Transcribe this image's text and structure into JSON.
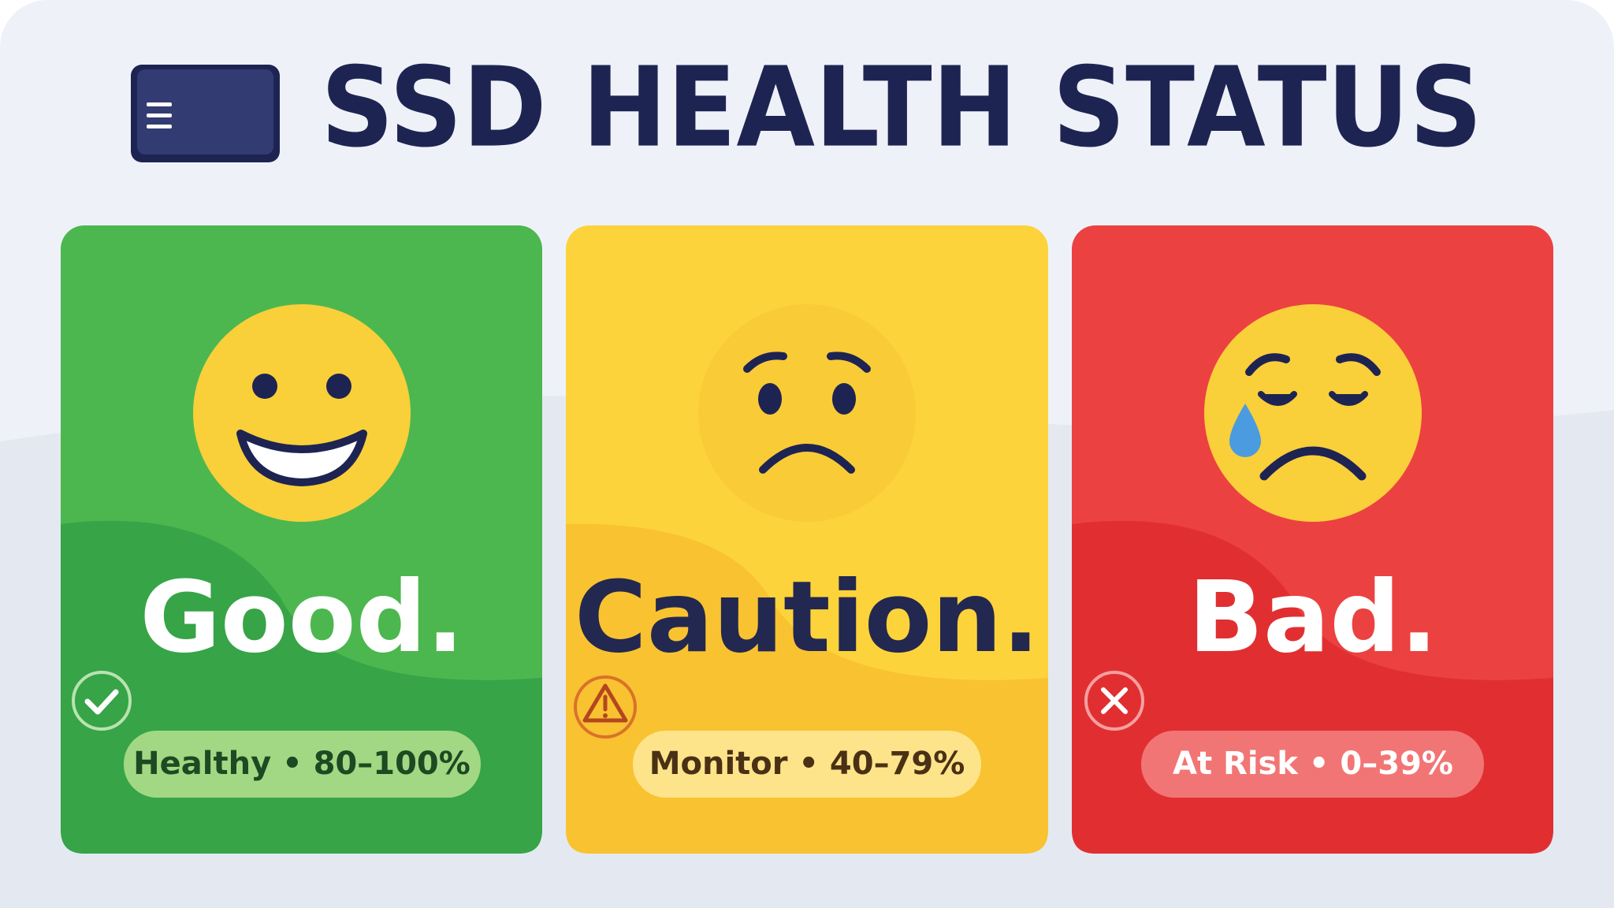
{
  "header": {
    "title": "SSD HEALTH STATUS"
  },
  "cards": [
    {
      "label": "Good.",
      "badge": "Healthy • 80–100%"
    },
    {
      "label": "Caution.",
      "badge": "Monitor • 40–79%"
    },
    {
      "label": "Bad.",
      "badge": "At Risk • 0–39%"
    }
  ]
}
